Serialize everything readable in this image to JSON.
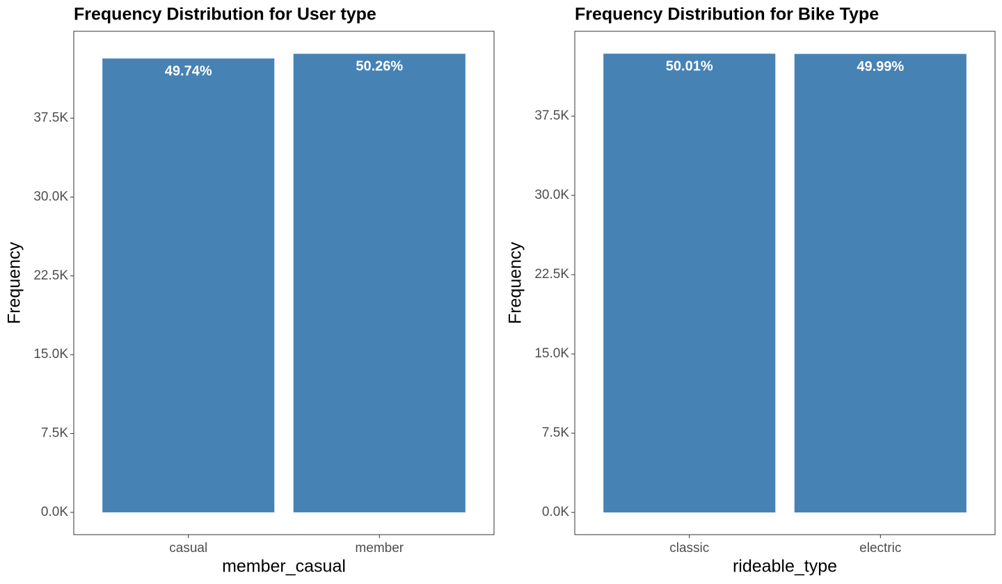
{
  "chart_data": [
    {
      "type": "bar",
      "title": "Frequency Distribution for User type",
      "x_label": "member_casual",
      "y_label": "Frequency",
      "categories": [
        "casual",
        "member"
      ],
      "values": [
        43180,
        43630
      ],
      "data_labels": [
        "49.74%",
        "50.26%"
      ],
      "color": "#4682b4",
      "ylim": [
        -2120,
        45770
      ],
      "yticks": [
        {
          "value": 0,
          "label": "0.0K"
        },
        {
          "value": 7500,
          "label": "7.5K"
        },
        {
          "value": 15000,
          "label": "15.0K"
        },
        {
          "value": 22500,
          "label": "22.5K"
        },
        {
          "value": 30000,
          "label": "30.0K"
        },
        {
          "value": 37500,
          "label": "37.5K"
        }
      ]
    },
    {
      "type": "bar",
      "title": "Frequency Distribution for Bike Type",
      "x_label": "rideable_type",
      "y_label": "Frequency",
      "categories": [
        "classic",
        "electric"
      ],
      "values": [
        43410,
        43390
      ],
      "data_labels": [
        "50.01%",
        "49.99%"
      ],
      "color": "#4682b4",
      "ylim": [
        -2100,
        45530
      ],
      "yticks": [
        {
          "value": 0,
          "label": "0.0K"
        },
        {
          "value": 7500,
          "label": "7.5K"
        },
        {
          "value": 15000,
          "label": "15.0K"
        },
        {
          "value": 22500,
          "label": "22.5K"
        },
        {
          "value": 30000,
          "label": "30.0K"
        },
        {
          "value": 37500,
          "label": "37.5K"
        }
      ]
    }
  ]
}
